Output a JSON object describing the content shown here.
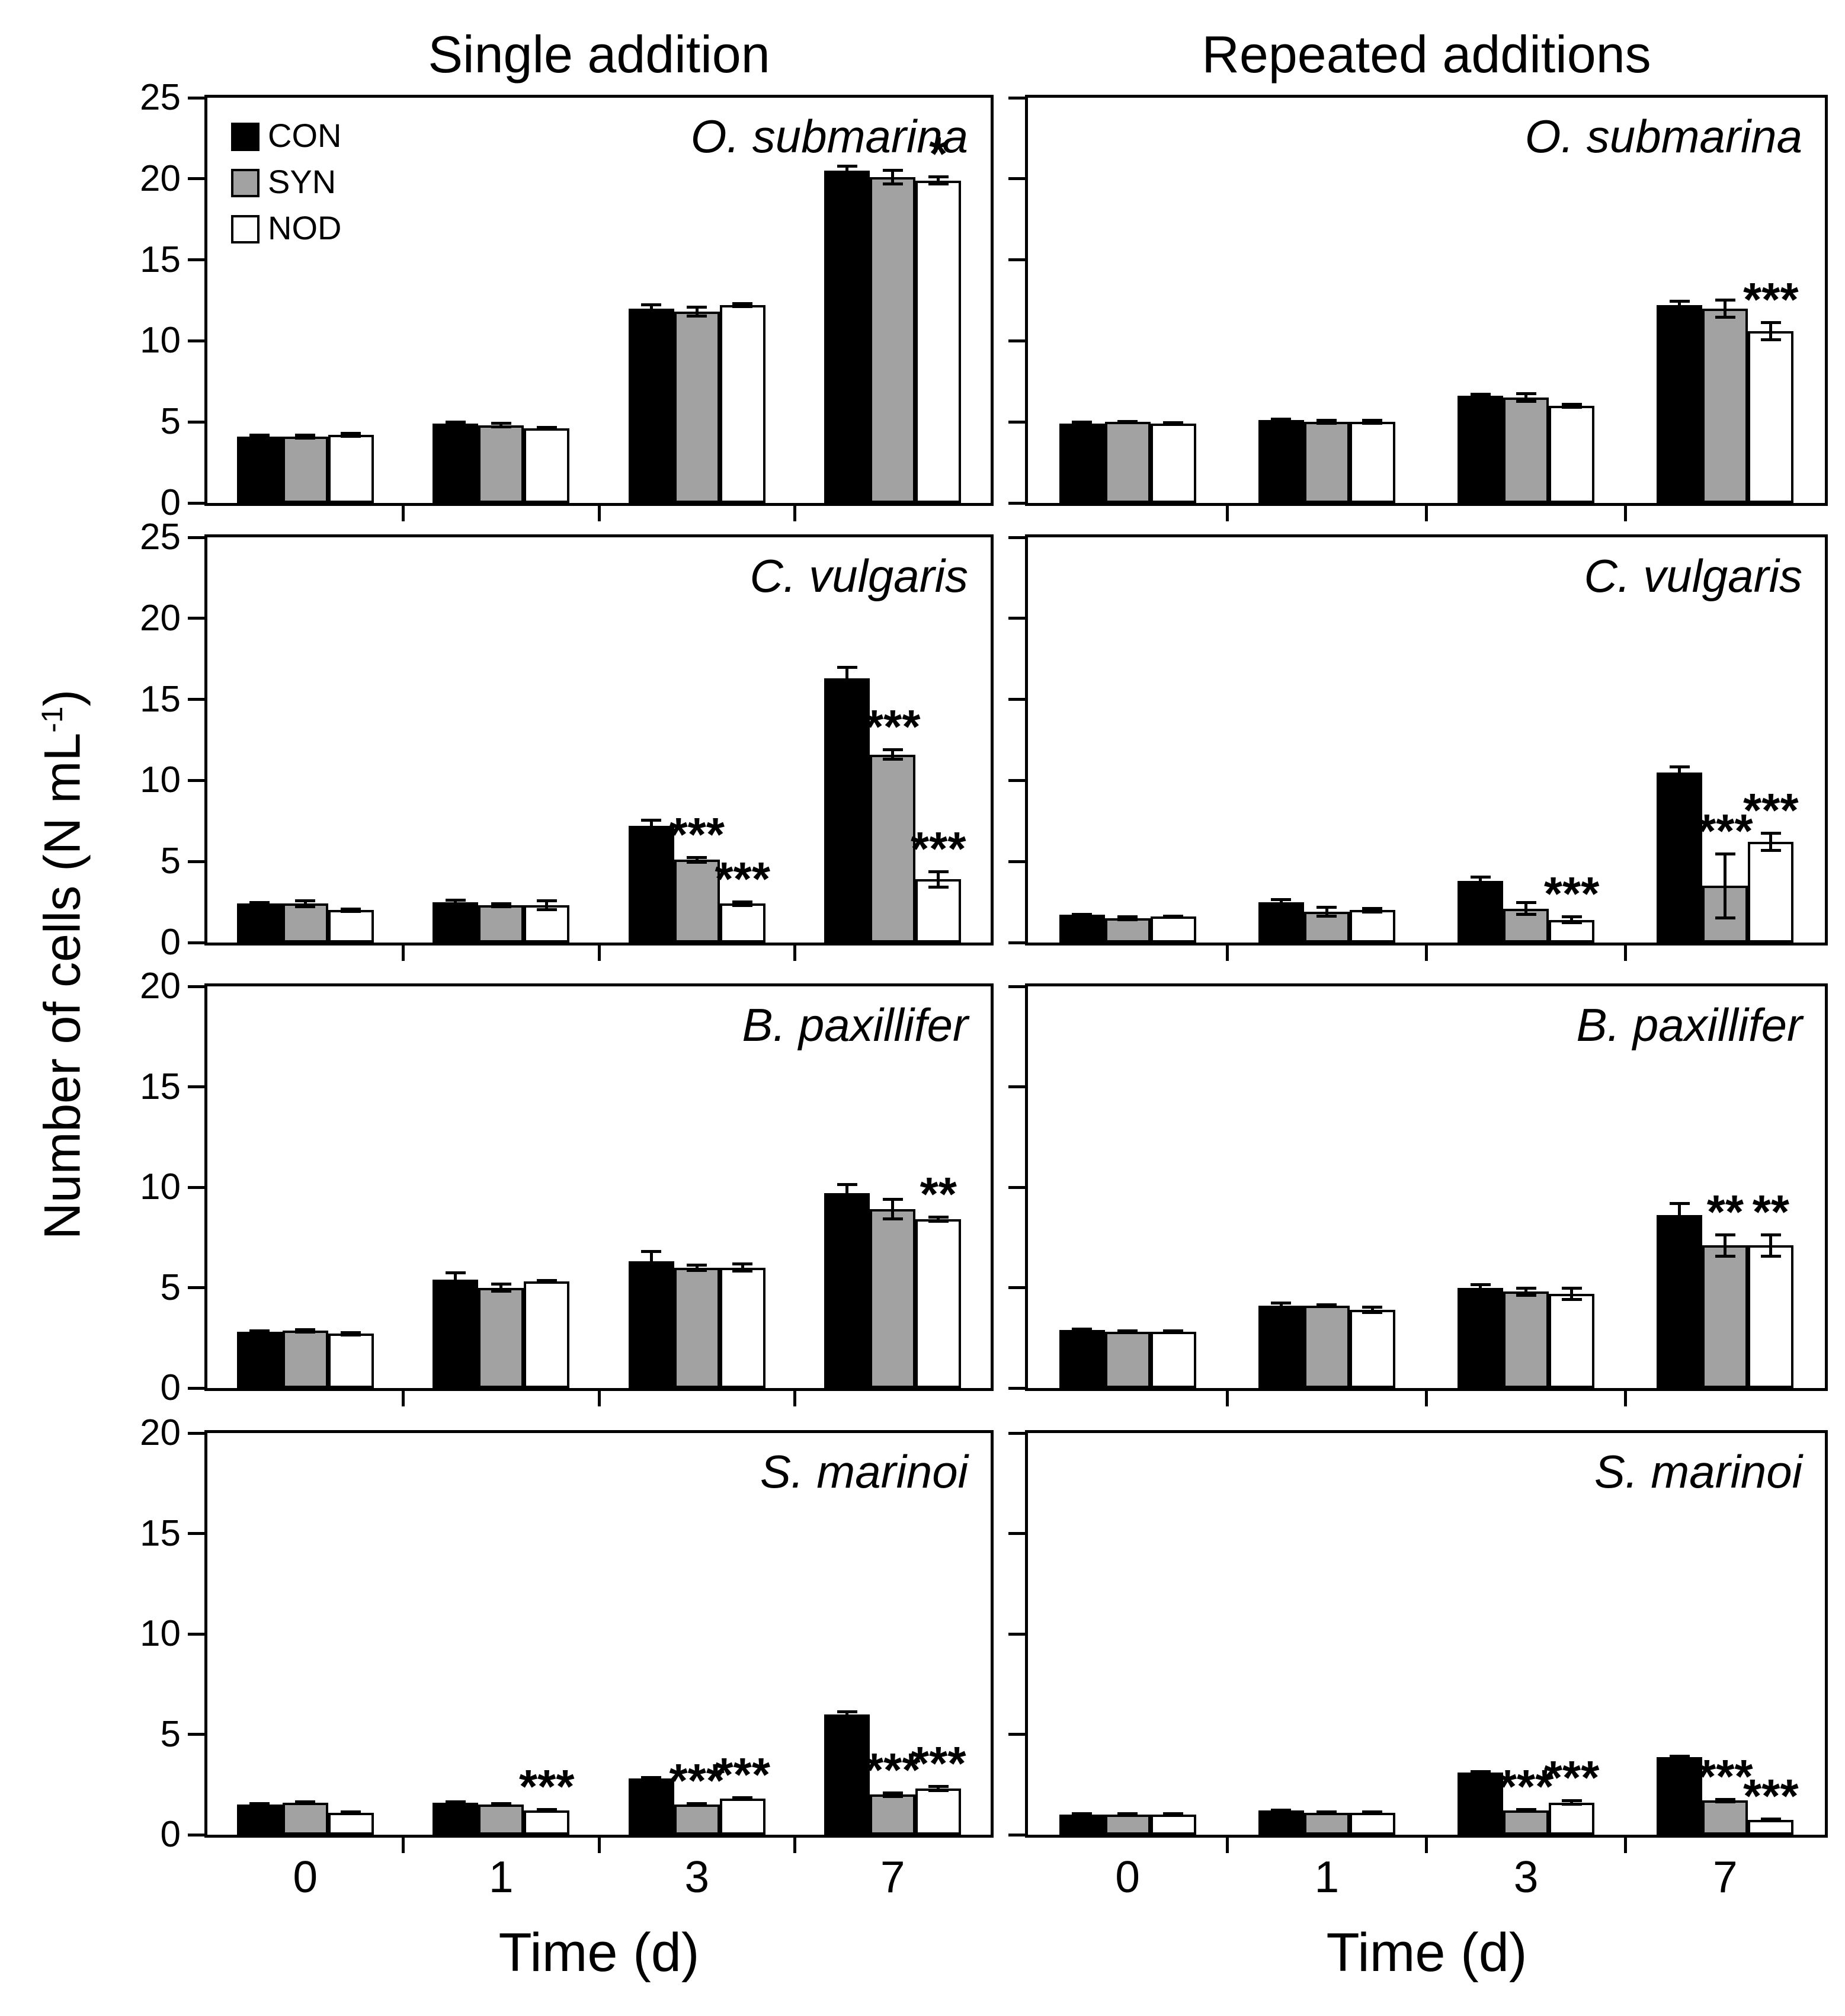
{
  "figure": {
    "column_titles": [
      "Single addition",
      "Repeated additions"
    ],
    "ylabel": {
      "main": "Number of cells (N mL",
      "sup": "-1",
      "end": ")"
    },
    "xlabel": "Time (d)",
    "x_tick_labels": [
      "0",
      "1",
      "3",
      "7"
    ],
    "legend": {
      "items": [
        {
          "label": "CON",
          "color": "#000000"
        },
        {
          "label": "SYN",
          "color": "#a2a2a2"
        },
        {
          "label": "NOD",
          "color": "#ffffff"
        }
      ]
    },
    "colors": {
      "axis": "#000000",
      "bar_border": "#000000",
      "background": "#ffffff"
    }
  },
  "chart_data": [
    {
      "type": "bar",
      "title": "O. submarina",
      "column": "Single addition",
      "xlabel": "Time (d)",
      "categories": [
        "0",
        "1",
        "3",
        "7"
      ],
      "ylim": [
        0,
        25
      ],
      "yticks": [
        0,
        5,
        10,
        15,
        20,
        25
      ],
      "show_ytick_labels": true,
      "legend_position": "top-left",
      "series": [
        {
          "name": "CON",
          "values": [
            4.1,
            4.9,
            12.0,
            20.5
          ],
          "errors": [
            0.1,
            0.12,
            0.25,
            0.3
          ],
          "sig": [
            "",
            "",
            "",
            ""
          ]
        },
        {
          "name": "SYN",
          "values": [
            4.1,
            4.8,
            11.8,
            20.1
          ],
          "errors": [
            0.12,
            0.12,
            0.3,
            0.45
          ],
          "sig": [
            "",
            "",
            "",
            ""
          ]
        },
        {
          "name": "NOD",
          "values": [
            4.2,
            4.6,
            12.2,
            19.9
          ],
          "errors": [
            0.12,
            0.08,
            0.12,
            0.25
          ],
          "sig": [
            "",
            "",
            "",
            "*"
          ]
        }
      ]
    },
    {
      "type": "bar",
      "title": "O. submarina",
      "column": "Repeated additions",
      "xlabel": "Time (d)",
      "categories": [
        "0",
        "1",
        "3",
        "7"
      ],
      "ylim": [
        0,
        25
      ],
      "yticks": [
        0,
        5,
        10,
        15,
        20,
        25
      ],
      "show_ytick_labels": false,
      "series": [
        {
          "name": "CON",
          "values": [
            4.9,
            5.1,
            6.6,
            12.2
          ],
          "errors": [
            0.1,
            0.1,
            0.12,
            0.25
          ],
          "sig": [
            "",
            "",
            "",
            ""
          ]
        },
        {
          "name": "SYN",
          "values": [
            5.0,
            5.0,
            6.5,
            12.0
          ],
          "errors": [
            0.06,
            0.1,
            0.25,
            0.55
          ],
          "sig": [
            "",
            "",
            "",
            ""
          ]
        },
        {
          "name": "NOD",
          "values": [
            4.9,
            5.0,
            6.0,
            10.6
          ],
          "errors": [
            0.06,
            0.1,
            0.12,
            0.55
          ],
          "sig": [
            "",
            "",
            "",
            "***"
          ]
        }
      ]
    },
    {
      "type": "bar",
      "title": "C. vulgaris",
      "column": "Single addition",
      "xlabel": "Time (d)",
      "categories": [
        "0",
        "1",
        "3",
        "7"
      ],
      "ylim": [
        0,
        25
      ],
      "yticks": [
        0,
        5,
        10,
        15,
        20,
        25
      ],
      "show_ytick_labels": true,
      "series": [
        {
          "name": "CON",
          "values": [
            2.4,
            2.5,
            7.2,
            16.3
          ],
          "errors": [
            0.1,
            0.12,
            0.35,
            0.7
          ],
          "sig": [
            "",
            "",
            "",
            ""
          ]
        },
        {
          "name": "SYN",
          "values": [
            2.4,
            2.3,
            5.1,
            11.6
          ],
          "errors": [
            0.2,
            0.12,
            0.18,
            0.3
          ],
          "sig": [
            "",
            "",
            "***",
            "***"
          ]
        },
        {
          "name": "NOD",
          "values": [
            2.0,
            2.3,
            2.4,
            3.9
          ],
          "errors": [
            0.1,
            0.3,
            0.12,
            0.5
          ],
          "sig": [
            "",
            "",
            "***",
            "***"
          ]
        }
      ]
    },
    {
      "type": "bar",
      "title": "C. vulgaris",
      "column": "Repeated additions",
      "xlabel": "Time (d)",
      "categories": [
        "0",
        "1",
        "3",
        "7"
      ],
      "ylim": [
        0,
        25
      ],
      "yticks": [
        0,
        5,
        10,
        15,
        20,
        25
      ],
      "show_ytick_labels": false,
      "series": [
        {
          "name": "CON",
          "values": [
            1.7,
            2.5,
            3.8,
            10.5
          ],
          "errors": [
            0.06,
            0.15,
            0.25,
            0.35
          ],
          "sig": [
            "",
            "",
            "",
            ""
          ]
        },
        {
          "name": "SYN",
          "values": [
            1.5,
            1.9,
            2.1,
            3.5
          ],
          "errors": [
            0.1,
            0.3,
            0.4,
            2.0
          ],
          "sig": [
            "",
            "",
            "",
            "***"
          ]
        },
        {
          "name": "NOD",
          "values": [
            1.6,
            2.0,
            1.4,
            6.2
          ],
          "errors": [
            0.06,
            0.12,
            0.2,
            0.55
          ],
          "sig": [
            "",
            "",
            "***",
            "***"
          ]
        }
      ]
    },
    {
      "type": "bar",
      "title": "B. paxillifer",
      "column": "Single addition",
      "xlabel": "Time (d)",
      "categories": [
        "0",
        "1",
        "3",
        "7"
      ],
      "ylim": [
        0,
        20
      ],
      "yticks": [
        0,
        5,
        10,
        15,
        20
      ],
      "show_ytick_labels": true,
      "series": [
        {
          "name": "CON",
          "values": [
            2.8,
            5.4,
            6.3,
            9.7
          ],
          "errors": [
            0.06,
            0.35,
            0.5,
            0.45
          ],
          "sig": [
            "",
            "",
            "",
            ""
          ]
        },
        {
          "name": "SYN",
          "values": [
            2.85,
            5.0,
            6.0,
            8.9
          ],
          "errors": [
            0.08,
            0.2,
            0.15,
            0.5
          ],
          "sig": [
            "",
            "",
            "",
            ""
          ]
        },
        {
          "name": "NOD",
          "values": [
            2.7,
            5.3,
            6.0,
            8.4
          ],
          "errors": [
            0.06,
            0.06,
            0.2,
            0.12
          ],
          "sig": [
            "",
            "",
            "",
            "**"
          ]
        }
      ]
    },
    {
      "type": "bar",
      "title": "B. paxillifer",
      "column": "Repeated additions",
      "xlabel": "Time (d)",
      "categories": [
        "0",
        "1",
        "3",
        "7"
      ],
      "ylim": [
        0,
        20
      ],
      "yticks": [
        0,
        5,
        10,
        15,
        20
      ],
      "show_ytick_labels": false,
      "series": [
        {
          "name": "CON",
          "values": [
            2.9,
            4.1,
            5.0,
            8.6
          ],
          "errors": [
            0.06,
            0.15,
            0.15,
            0.6
          ],
          "sig": [
            "",
            "",
            "",
            ""
          ]
        },
        {
          "name": "SYN",
          "values": [
            2.8,
            4.1,
            4.8,
            7.1
          ],
          "errors": [
            0.06,
            0.06,
            0.2,
            0.55
          ],
          "sig": [
            "",
            "",
            "",
            "**"
          ]
        },
        {
          "name": "NOD",
          "values": [
            2.8,
            3.9,
            4.7,
            7.1
          ],
          "errors": [
            0.06,
            0.15,
            0.3,
            0.55
          ],
          "sig": [
            "",
            "",
            "",
            "**"
          ]
        }
      ]
    },
    {
      "type": "bar",
      "title": "S. marinoi",
      "column": "Single addition",
      "xlabel": "Time (d)",
      "categories": [
        "0",
        "1",
        "3",
        "7"
      ],
      "ylim": [
        0,
        20
      ],
      "yticks": [
        0,
        5,
        10,
        15,
        20
      ],
      "show_ytick_labels": true,
      "series": [
        {
          "name": "CON",
          "values": [
            1.5,
            1.6,
            2.8,
            6.0
          ],
          "errors": [
            0.06,
            0.06,
            0.06,
            0.15
          ],
          "sig": [
            "",
            "",
            "",
            ""
          ]
        },
        {
          "name": "SYN",
          "values": [
            1.6,
            1.5,
            1.5,
            2.0
          ],
          "errors": [
            0.06,
            0.06,
            0.06,
            0.1
          ],
          "sig": [
            "",
            "",
            "***",
            "***"
          ]
        },
        {
          "name": "NOD",
          "values": [
            1.1,
            1.2,
            1.8,
            2.3
          ],
          "errors": [
            0.06,
            0.06,
            0.06,
            0.12
          ],
          "sig": [
            "",
            "***",
            "***",
            "***"
          ]
        }
      ]
    },
    {
      "type": "bar",
      "title": "S. marinoi",
      "column": "Repeated additions",
      "xlabel": "Time (d)",
      "categories": [
        "0",
        "1",
        "3",
        "7"
      ],
      "ylim": [
        0,
        20
      ],
      "yticks": [
        0,
        5,
        10,
        15,
        20
      ],
      "show_ytick_labels": false,
      "series": [
        {
          "name": "CON",
          "values": [
            1.0,
            1.2,
            3.1,
            3.85
          ],
          "errors": [
            0.05,
            0.05,
            0.06,
            0.06
          ],
          "sig": [
            "",
            "",
            "",
            ""
          ]
        },
        {
          "name": "SYN",
          "values": [
            1.0,
            1.1,
            1.2,
            1.7
          ],
          "errors": [
            0.05,
            0.05,
            0.06,
            0.08
          ],
          "sig": [
            "",
            "",
            "***",
            "***"
          ]
        },
        {
          "name": "NOD",
          "values": [
            1.0,
            1.1,
            1.6,
            0.75
          ],
          "errors": [
            0.05,
            0.05,
            0.1,
            0.06
          ],
          "sig": [
            "",
            "",
            "***",
            "***"
          ]
        }
      ]
    }
  ]
}
